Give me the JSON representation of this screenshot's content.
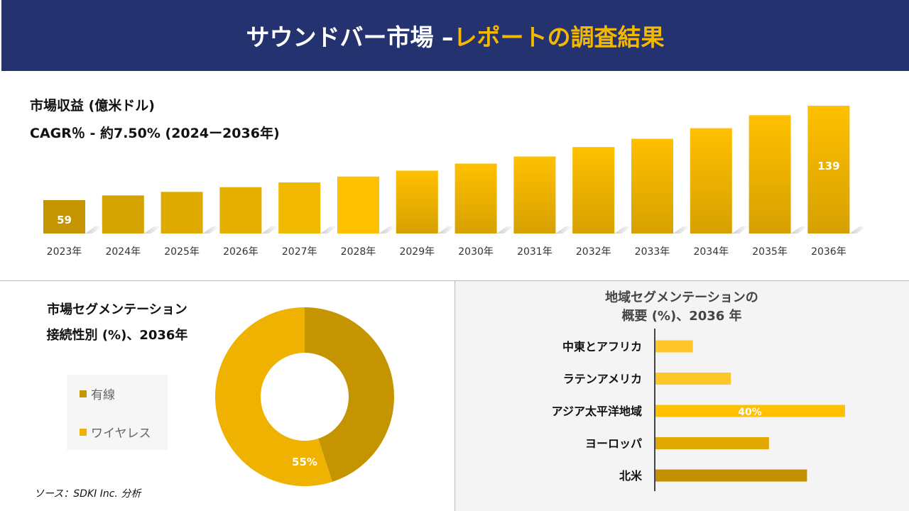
{
  "header": {
    "title_main": "サウンドバー市場 –",
    "title_accent": "レポートの調査結果"
  },
  "revenue": {
    "title": "市場収益 (億米ドル)",
    "cagr": "CAGR％ - 約7.50% (2024ー2036年)"
  },
  "chart_data": [
    {
      "type": "bar",
      "title": "市場収益 (億米ドル)",
      "categories": [
        "2023年",
        "2024年",
        "2025年",
        "2026年",
        "2027年",
        "2028年",
        "2029年",
        "2030年",
        "2031年",
        "2032年",
        "2033年",
        "2034年",
        "2035年",
        "2036年"
      ],
      "values": [
        59,
        63,
        66,
        70,
        74,
        79,
        84,
        90,
        96,
        104,
        111,
        120,
        131,
        139
      ],
      "data_labels": {
        "2023年": "59",
        "2036年": "139"
      },
      "colors": [
        "#c49500",
        "#d4a300",
        "#deaa00",
        "#e6b000",
        "#f0b800",
        "#ffc000",
        "#ffc000",
        "#ffc000",
        "#ffc000",
        "#ffc000",
        "#ffc000",
        "#ffc000",
        "#ffc000",
        "#ffc000"
      ],
      "grid": false
    },
    {
      "type": "pie",
      "title": "市場セグメンテーション 接続性別 (%)、2036年",
      "labels": [
        "有線",
        "ワイヤレス"
      ],
      "values": [
        45,
        55
      ],
      "data_labels": [
        "",
        "55%"
      ],
      "colors": [
        "#c49500",
        "#efb200"
      ],
      "legend": "left"
    },
    {
      "type": "bar",
      "orientation": "horizontal",
      "title": "地域セグメンテーションの 概要 (%)、2036 年",
      "categories": [
        "中東とアフリカ",
        "ラテンアメリカ",
        "アジア太平洋地域",
        "ヨーロッパ",
        "北米"
      ],
      "values": [
        8,
        16,
        40,
        24,
        32
      ],
      "data_labels": [
        "",
        "",
        "40%",
        "",
        ""
      ],
      "colors": [
        "#ffc629",
        "#ffc629",
        "#ffc000",
        "#e3a800",
        "#c49000"
      ]
    }
  ],
  "segment": {
    "title_line1": "市場セグメンテーション",
    "title_line2": "接続性別 (%)、2036年"
  },
  "region": {
    "title_line1": "地域セグメンテーションの",
    "title_line2": "概要 (%)、2036 年"
  },
  "source": "ソース：SDKI Inc. 分析"
}
